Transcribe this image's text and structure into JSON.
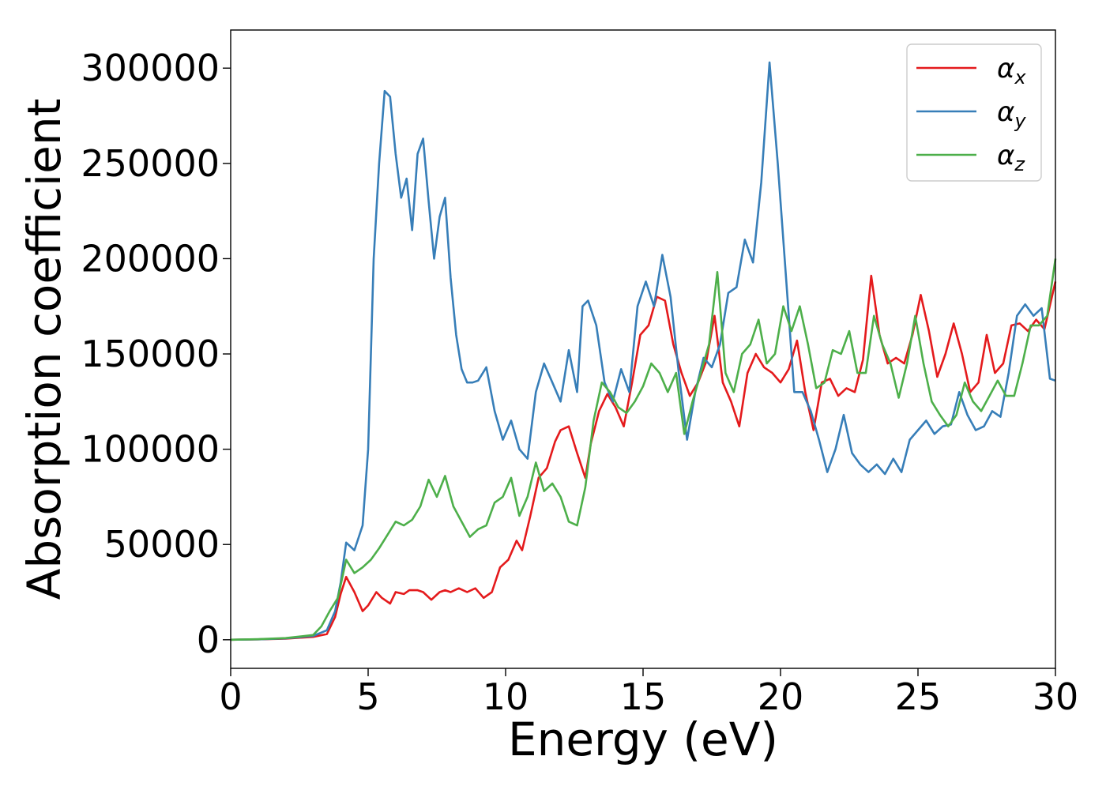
{
  "chart_data": {
    "type": "line",
    "title": "",
    "xlabel": "Energy (eV)",
    "ylabel": "Absorption coefficient",
    "xlim": [
      0,
      30
    ],
    "ylim": [
      -15000,
      320000
    ],
    "grid": false,
    "legend_position": "top-right",
    "xticks": [
      0,
      5,
      10,
      15,
      20,
      25,
      30
    ],
    "yticks": [
      0,
      50000,
      100000,
      150000,
      200000,
      250000,
      300000
    ],
    "series": [
      {
        "name": "αx",
        "symbol": "α",
        "subscript": "x",
        "color": "#e41a1c",
        "x": [
          0,
          1,
          2,
          3,
          3.5,
          3.8,
          4,
          4.2,
          4.5,
          4.8,
          5.0,
          5.3,
          5.5,
          5.8,
          6.0,
          6.3,
          6.5,
          6.8,
          7.0,
          7.3,
          7.6,
          7.8,
          8.0,
          8.3,
          8.6,
          8.9,
          9.2,
          9.5,
          9.8,
          10.1,
          10.4,
          10.6,
          10.9,
          11.2,
          11.5,
          11.8,
          12.0,
          12.3,
          12.6,
          12.9,
          13.1,
          13.4,
          13.7,
          14.0,
          14.3,
          14.6,
          14.9,
          15.2,
          15.5,
          15.8,
          16.1,
          16.4,
          16.7,
          17.0,
          17.3,
          17.6,
          17.9,
          18.2,
          18.5,
          18.8,
          19.1,
          19.4,
          19.7,
          20.0,
          20.3,
          20.6,
          20.9,
          21.2,
          21.5,
          21.8,
          22.1,
          22.4,
          22.7,
          23.0,
          23.3,
          23.6,
          23.9,
          24.2,
          24.5,
          24.8,
          25.1,
          25.4,
          25.7,
          26.0,
          26.3,
          26.6,
          26.9,
          27.2,
          27.5,
          27.8,
          28.1,
          28.4,
          28.7,
          29.0,
          29.3,
          29.6,
          30.0
        ],
        "y": [
          0,
          200,
          600,
          1500,
          3000,
          12000,
          24000,
          33000,
          25000,
          15000,
          18000,
          25000,
          22000,
          19000,
          25000,
          24000,
          26000,
          26000,
          25000,
          21000,
          25000,
          26000,
          25000,
          27000,
          25000,
          27000,
          22000,
          25000,
          38000,
          42000,
          52000,
          47000,
          65000,
          85000,
          90000,
          104000,
          110000,
          112000,
          98000,
          85000,
          103000,
          120000,
          129000,
          122000,
          112000,
          135000,
          160000,
          165000,
          180000,
          178000,
          155000,
          140000,
          128000,
          135000,
          146000,
          170000,
          135000,
          125000,
          112000,
          140000,
          150000,
          143000,
          140000,
          135000,
          142000,
          157000,
          130000,
          110000,
          135000,
          137000,
          128000,
          132000,
          130000,
          147000,
          191000,
          160000,
          145000,
          148000,
          145000,
          160000,
          181000,
          162000,
          138000,
          150000,
          166000,
          150000,
          130000,
          135000,
          160000,
          140000,
          145000,
          165000,
          166000,
          162000,
          168000,
          163000,
          188000
        ]
      },
      {
        "name": "αy",
        "symbol": "α",
        "subscript": "y",
        "color": "#377eb8",
        "x": [
          0,
          1,
          2,
          3,
          3.5,
          3.8,
          4,
          4.2,
          4.5,
          4.8,
          5.0,
          5.2,
          5.4,
          5.6,
          5.8,
          6.0,
          6.2,
          6.4,
          6.6,
          6.8,
          7.0,
          7.2,
          7.4,
          7.6,
          7.8,
          8.0,
          8.2,
          8.4,
          8.6,
          8.8,
          9.0,
          9.3,
          9.6,
          9.9,
          10.2,
          10.5,
          10.8,
          11.1,
          11.4,
          11.7,
          12.0,
          12.3,
          12.6,
          12.8,
          13.0,
          13.3,
          13.6,
          13.9,
          14.2,
          14.5,
          14.8,
          15.1,
          15.4,
          15.7,
          16.0,
          16.3,
          16.6,
          16.9,
          17.2,
          17.5,
          17.8,
          18.1,
          18.4,
          18.7,
          19.0,
          19.3,
          19.6,
          19.9,
          20.2,
          20.5,
          20.8,
          21.1,
          21.4,
          21.7,
          22.0,
          22.3,
          22.6,
          22.9,
          23.2,
          23.5,
          23.8,
          24.1,
          24.4,
          24.7,
          25.0,
          25.3,
          25.6,
          25.9,
          26.2,
          26.5,
          26.8,
          27.1,
          27.4,
          27.7,
          28.0,
          28.3,
          28.6,
          28.9,
          29.2,
          29.5,
          29.8,
          30.0
        ],
        "y": [
          0,
          200,
          700,
          2000,
          5000,
          15000,
          30000,
          51000,
          47000,
          60000,
          100000,
          200000,
          250000,
          288000,
          285000,
          255000,
          232000,
          242000,
          215000,
          255000,
          263000,
          230000,
          200000,
          222000,
          232000,
          190000,
          160000,
          142000,
          135000,
          135000,
          136000,
          143000,
          120000,
          105000,
          115000,
          100000,
          95000,
          130000,
          145000,
          135000,
          125000,
          152000,
          130000,
          175000,
          178000,
          165000,
          135000,
          125000,
          142000,
          130000,
          175000,
          188000,
          175000,
          202000,
          180000,
          140000,
          105000,
          130000,
          148000,
          143000,
          155000,
          182000,
          185000,
          210000,
          198000,
          240000,
          303000,
          250000,
          190000,
          130000,
          130000,
          120000,
          105000,
          88000,
          100000,
          118000,
          98000,
          92000,
          88000,
          92000,
          87000,
          95000,
          88000,
          105000,
          110000,
          115000,
          108000,
          112000,
          113000,
          130000,
          118000,
          110000,
          112000,
          120000,
          117000,
          140000,
          170000,
          176000,
          170000,
          174000,
          137000,
          136000
        ]
      },
      {
        "name": "αz",
        "symbol": "α",
        "subscript": "z",
        "color": "#4daf4a",
        "x": [
          0,
          1,
          2,
          3,
          3.3,
          3.6,
          3.9,
          4.2,
          4.5,
          4.8,
          5.1,
          5.4,
          5.7,
          6.0,
          6.3,
          6.6,
          6.9,
          7.2,
          7.5,
          7.8,
          8.1,
          8.4,
          8.7,
          9.0,
          9.3,
          9.6,
          9.9,
          10.2,
          10.5,
          10.8,
          11.1,
          11.4,
          11.7,
          12.0,
          12.3,
          12.6,
          12.9,
          13.2,
          13.5,
          13.8,
          14.1,
          14.4,
          14.7,
          15.0,
          15.3,
          15.6,
          15.9,
          16.2,
          16.5,
          16.8,
          17.1,
          17.4,
          17.7,
          18.0,
          18.3,
          18.6,
          18.9,
          19.2,
          19.5,
          19.8,
          20.1,
          20.4,
          20.7,
          21.0,
          21.3,
          21.6,
          21.9,
          22.2,
          22.5,
          22.8,
          23.1,
          23.4,
          23.7,
          24.0,
          24.3,
          24.6,
          24.9,
          25.2,
          25.5,
          25.8,
          26.1,
          26.4,
          26.7,
          27.0,
          27.3,
          27.6,
          27.9,
          28.2,
          28.5,
          28.8,
          29.1,
          29.4,
          29.7,
          30.0
        ],
        "y": [
          0,
          300,
          900,
          2500,
          7000,
          15000,
          22000,
          42000,
          35000,
          38000,
          42000,
          48000,
          55000,
          62000,
          60000,
          63000,
          70000,
          84000,
          75000,
          86000,
          70000,
          62000,
          54000,
          58000,
          60000,
          72000,
          75000,
          85000,
          65000,
          75000,
          93000,
          78000,
          82000,
          75000,
          62000,
          60000,
          80000,
          115000,
          135000,
          130000,
          122000,
          119000,
          125000,
          133000,
          145000,
          140000,
          130000,
          140000,
          108000,
          125000,
          140000,
          155000,
          193000,
          140000,
          130000,
          150000,
          155000,
          168000,
          145000,
          150000,
          175000,
          162000,
          175000,
          155000,
          132000,
          135000,
          152000,
          150000,
          162000,
          140000,
          140000,
          170000,
          155000,
          145000,
          127000,
          145000,
          170000,
          145000,
          125000,
          118000,
          112000,
          118000,
          135000,
          125000,
          120000,
          128000,
          136000,
          128000,
          128000,
          145000,
          165000,
          165000,
          170000,
          200000
        ]
      }
    ]
  }
}
